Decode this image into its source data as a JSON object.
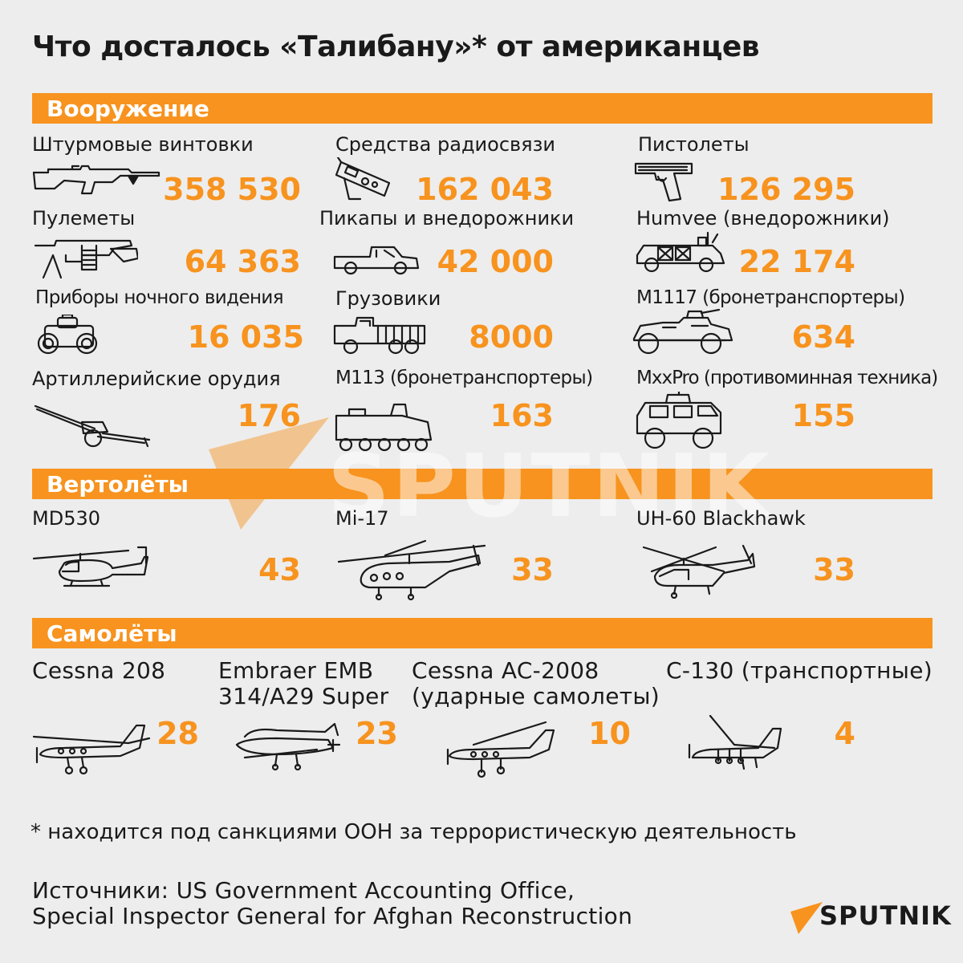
{
  "title": "Что досталось «Талибану»* от американцев",
  "sections": {
    "weapons": "Вооружение",
    "helicopters": "Вертолёты",
    "planes": "Самолёты"
  },
  "weapons": [
    {
      "label": "Штурмовые винтовки",
      "value": "358 530",
      "icon": "rifle-icon"
    },
    {
      "label": "Средства радиосвязи",
      "value": "162 043",
      "icon": "radio-icon"
    },
    {
      "label": "Пистолеты",
      "value": "126 295",
      "icon": "pistol-icon"
    },
    {
      "label": "Пулеметы",
      "value": "64 363",
      "icon": "machine-gun-icon"
    },
    {
      "label": "Пикапы и внедорожники",
      "value": "42 000",
      "icon": "pickup-icon"
    },
    {
      "label": "Humvee (внедорожники)",
      "value": "22 174",
      "icon": "humvee-icon"
    },
    {
      "label": "Приборы ночного видения",
      "value": "16 035",
      "icon": "night-vision-icon"
    },
    {
      "label": "Грузовики",
      "value": "8000",
      "icon": "truck-icon"
    },
    {
      "label": "M1117 (бронетранспортеры)",
      "value": "634",
      "icon": "armored-car-icon"
    },
    {
      "label": "Артиллерийские орудия",
      "value": "176",
      "icon": "artillery-icon"
    },
    {
      "label": "M113 (бронетранспортеры)",
      "value": "163",
      "icon": "apc-icon"
    },
    {
      "label": "MxxPro (противоминная техника)",
      "value": "155",
      "icon": "mrap-icon"
    }
  ],
  "helicopters": [
    {
      "label": "MD530",
      "value": "43",
      "icon": "helicopter-icon"
    },
    {
      "label": "Mi-17",
      "value": "33",
      "icon": "helicopter-icon"
    },
    {
      "label": "UH-60 Blackhawk",
      "value": "33",
      "icon": "helicopter-icon"
    }
  ],
  "planes": [
    {
      "label": "Cessna 208",
      "value": "28",
      "icon": "airplane-icon"
    },
    {
      "label_line1": "Embraer EMB",
      "label_line2": "314/A29 Super",
      "value": "23",
      "icon": "airplane-icon"
    },
    {
      "label_line1": "Cessna AC-2008",
      "label_line2": "(ударные самолеты)",
      "value": "10",
      "icon": "airplane-icon"
    },
    {
      "label": "C-130 (транспортные)",
      "value": "4",
      "icon": "transport-plane-icon"
    }
  ],
  "footnote": "* находится под санкциями ООН за террористическую деятельность",
  "sources_line1": "Источники: US Government Accounting Office,",
  "sources_line2": "Special Inspector General for Afghan Reconstruction",
  "watermark": "SPUTNIK",
  "logo": "SPUTNIK",
  "colors": {
    "accent": "#f7931e",
    "background": "#ededed",
    "text": "#1a1a1a"
  }
}
